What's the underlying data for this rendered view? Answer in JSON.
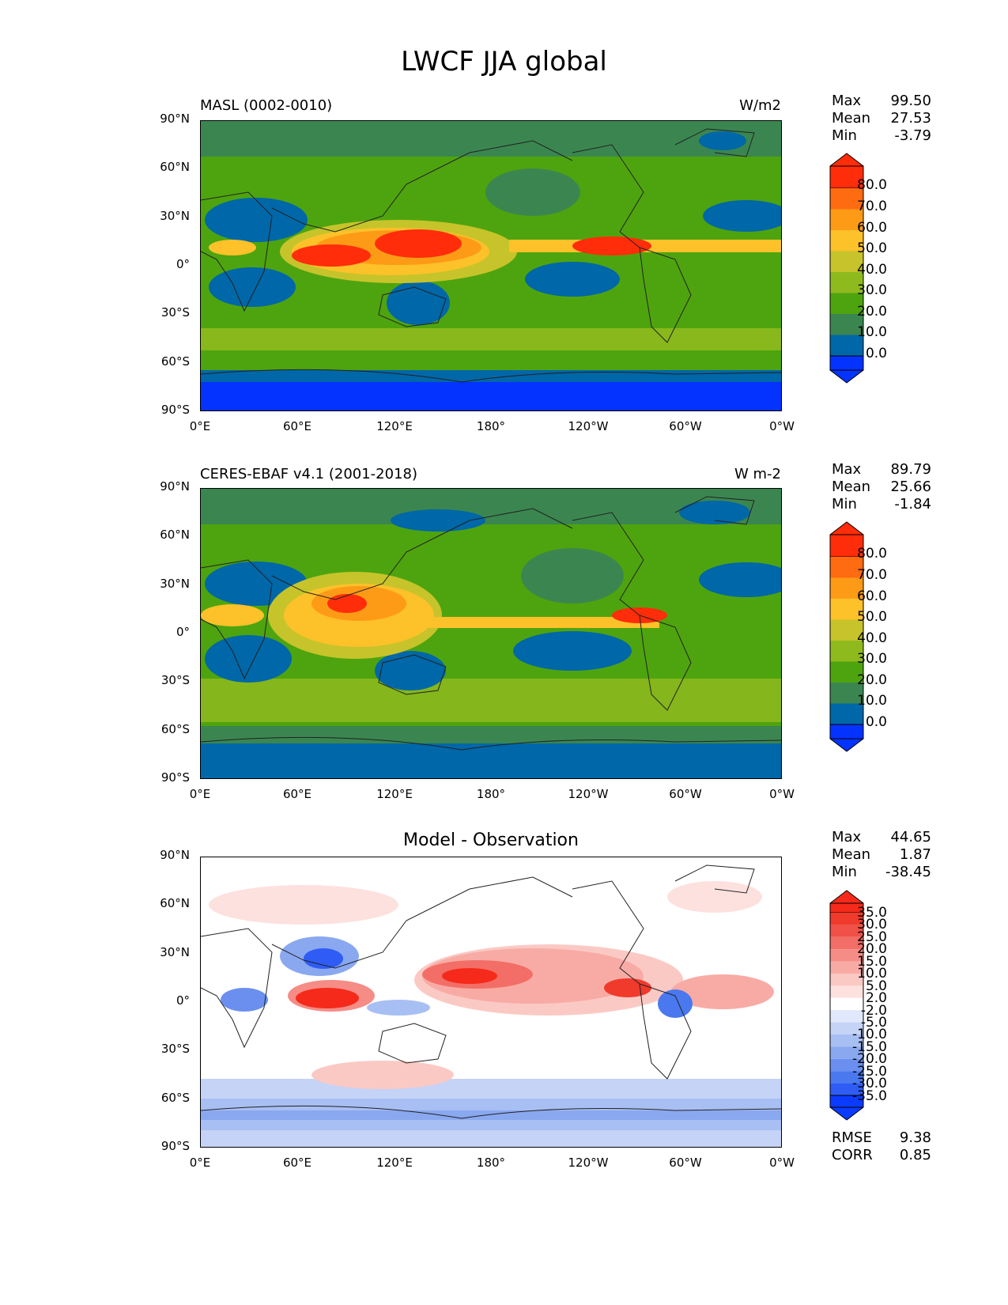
{
  "title": "LWCF JJA global",
  "lat_ticks": [
    "90°N",
    "60°N",
    "30°N",
    "0°",
    "30°S",
    "60°S",
    "90°S"
  ],
  "lon_ticks": [
    "0°E",
    "60°E",
    "120°E",
    "180°",
    "120°W",
    "60°W",
    "0°W"
  ],
  "colors": {
    "abs_levels": [
      "#0433ff",
      "#0067a8",
      "#3b8650",
      "#4ea40e",
      "#8fba1e",
      "#c6c42a",
      "#fdc12a",
      "#fd9b17",
      "#ff6b10",
      "#ff2d0a"
    ],
    "diff_levels": [
      "#0b3bff",
      "#2e5cf5",
      "#4a78ef",
      "#6a8fef",
      "#8aa8f0",
      "#a8bff3",
      "#c5d3f7",
      "#e1e8fb",
      "#ffffff",
      "#fde1df",
      "#fbc9c4",
      "#f8aba5",
      "#f58c86",
      "#f26e66",
      "#ef5047",
      "#f03a2c",
      "#f52a1a"
    ]
  },
  "panels": [
    {
      "left_title": "MASL (0002-0010)",
      "right_title": "W/m2",
      "stats": [
        {
          "label": "Max",
          "value": "99.50"
        },
        {
          "label": "Mean",
          "value": "27.53"
        },
        {
          "label": "Min",
          "value": "-3.79"
        }
      ],
      "colorbar_labels": [
        "80.0",
        "70.0",
        "60.0",
        "50.0",
        "40.0",
        "30.0",
        "20.0",
        "10.0",
        "0.0"
      ]
    },
    {
      "left_title": "CERES-EBAF v4.1 (2001-2018)",
      "right_title": "W m-2",
      "stats": [
        {
          "label": "Max",
          "value": "89.79"
        },
        {
          "label": "Mean",
          "value": "25.66"
        },
        {
          "label": "Min",
          "value": "-1.84"
        }
      ],
      "colorbar_labels": [
        "80.0",
        "70.0",
        "60.0",
        "50.0",
        "40.0",
        "30.0",
        "20.0",
        "10.0",
        "0.0"
      ]
    },
    {
      "center_title": "Model - Observation",
      "stats": [
        {
          "label": "Max",
          "value": "44.65"
        },
        {
          "label": "Mean",
          "value": "1.87"
        },
        {
          "label": "Min",
          "value": "-38.45"
        }
      ],
      "colorbar_labels": [
        "35.0",
        "30.0",
        "25.0",
        "20.0",
        "15.0",
        "10.0",
        "5.0",
        "2.0",
        "-2.0",
        "-5.0",
        "-10.0",
        "-15.0",
        "-20.0",
        "-25.0",
        "-30.0",
        "-35.0"
      ],
      "metrics": [
        {
          "label": "RMSE",
          "value": "9.38"
        },
        {
          "label": "CORR",
          "value": "0.85"
        }
      ]
    }
  ]
}
